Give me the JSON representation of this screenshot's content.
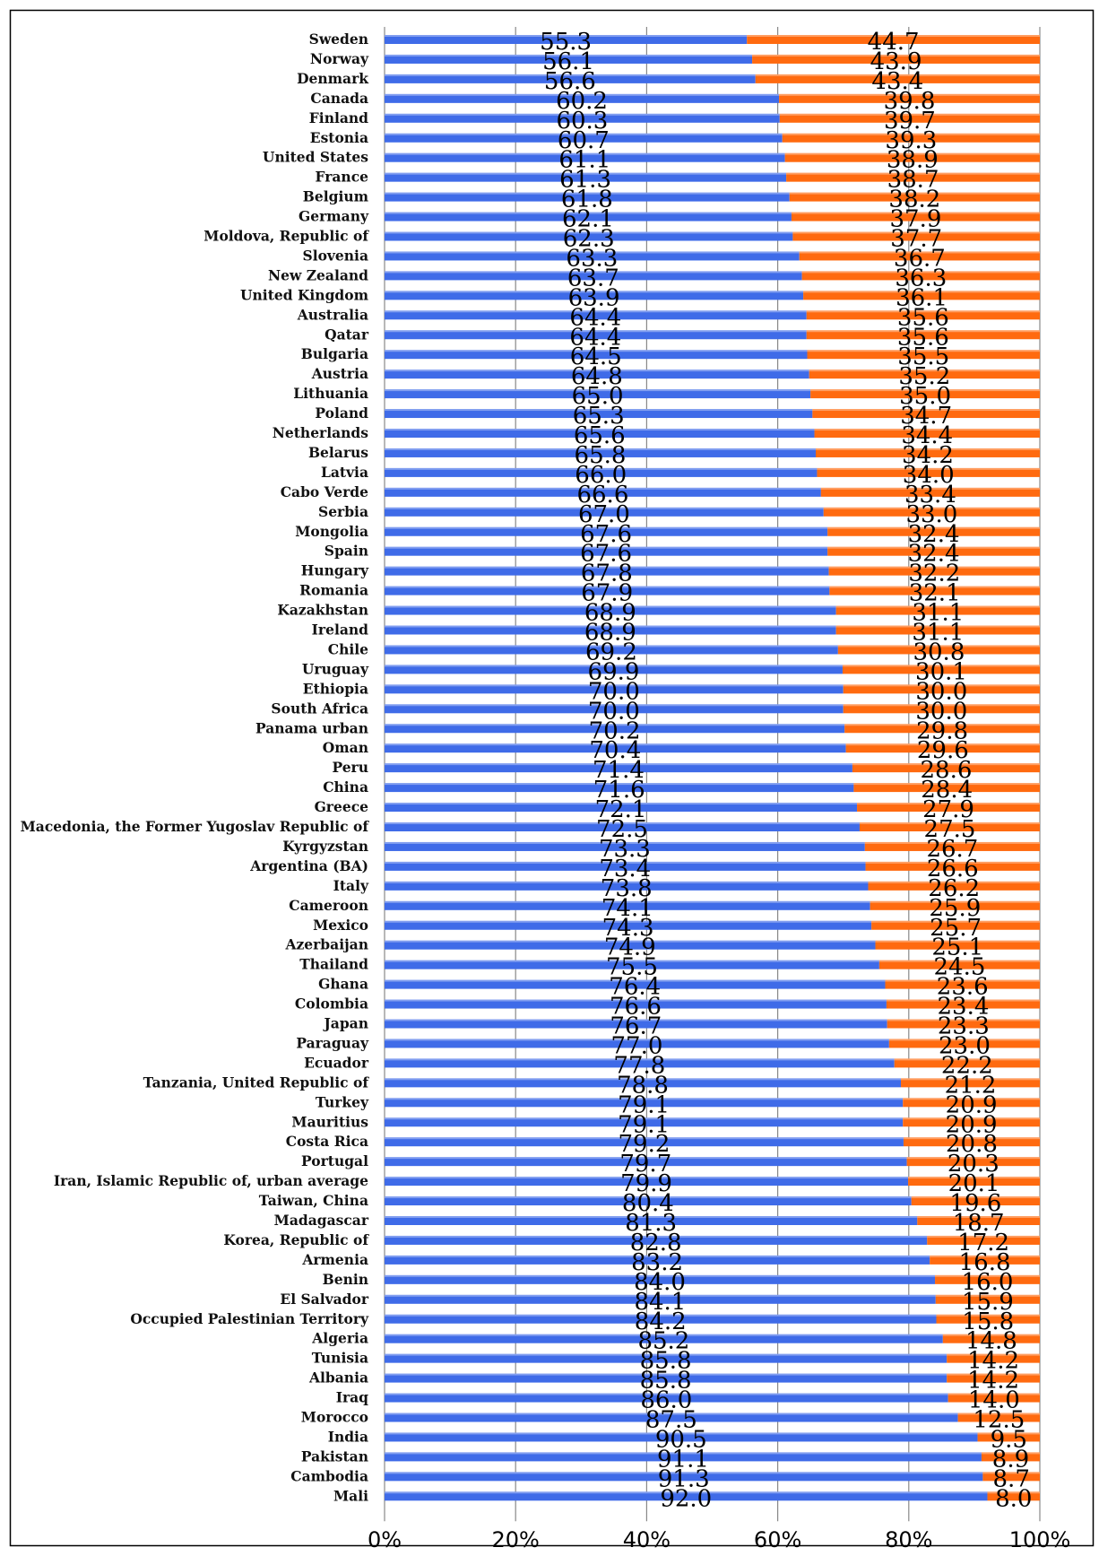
{
  "chart_data": {
    "type": "bar",
    "orientation": "horizontal",
    "stacked": "percent",
    "title": "",
    "xlabel": "",
    "ylabel": "",
    "xlim": [
      0,
      100
    ],
    "x_ticks": [
      "0%",
      "20%",
      "40%",
      "60%",
      "80%",
      "100%"
    ],
    "grid": true,
    "categories": [
      "Sweden",
      "Norway",
      "Denmark",
      "Canada",
      "Finland",
      "Estonia",
      "United States",
      "France",
      "Belgium",
      "Germany",
      "Moldova, Republic of",
      "Slovenia",
      "New Zealand",
      "United Kingdom",
      "Australia",
      "Qatar",
      "Bulgaria",
      "Austria",
      "Lithuania",
      "Poland",
      "Netherlands",
      "Belarus",
      "Latvia",
      "Cabo Verde",
      "Serbia",
      "Mongolia",
      "Spain",
      "Hungary",
      "Romania",
      "Kazakhstan",
      "Ireland",
      "Chile",
      "Uruguay",
      "Ethiopia",
      "South Africa",
      "Panama urban",
      "Oman",
      "Peru",
      "China",
      "Greece",
      "Macedonia, the Former Yugoslav Republic of",
      "Kyrgyzstan",
      "Argentina (BA)",
      "Italy",
      "Cameroon",
      "Mexico",
      "Azerbaijan",
      "Thailand",
      "Ghana",
      "Colombia",
      "Japan",
      "Paraguay",
      "Ecuador",
      "Tanzania, United Republic of",
      "Turkey",
      "Mauritius",
      "Costa Rica",
      "Portugal",
      "Iran, Islamic Republic of, urban average",
      "Taiwan, China",
      "Madagascar",
      "Korea, Republic of",
      "Armenia",
      "Benin",
      "El Salvador",
      "Occupied Palestinian Territory",
      "Algeria",
      "Tunisia",
      "Albania",
      "Iraq",
      "Morocco",
      "India",
      "Pakistan",
      "Cambodia",
      "Mali"
    ],
    "series": [
      {
        "values": [
          "55.3",
          "56.1",
          "56.6",
          "60.2",
          "60.3",
          "60.7",
          "61.1",
          "61.3",
          "61.8",
          "62.1",
          "62.3",
          "63.3",
          "63.7",
          "63.9",
          "64.4",
          "64.4",
          "64.5",
          "64.8",
          "65.0",
          "65.3",
          "65.6",
          "65.8",
          "66.0",
          "66.6",
          "67.0",
          "67.6",
          "67.6",
          "67.8",
          "67.9",
          "68.9",
          "68.9",
          "69.2",
          "69.9",
          "70.0",
          "70.0",
          "70.2",
          "70.4",
          "71.4",
          "71.6",
          "72.1",
          "72.5",
          "73.3",
          "73.4",
          "73.8",
          "74.1",
          "74.3",
          "74.9",
          "75.5",
          "76.4",
          "76.6",
          "76.7",
          "77.0",
          "77.8",
          "78.8",
          "79.1",
          "79.1",
          "79.2",
          "79.7",
          "79.9",
          "80.4",
          "81.3",
          "82.8",
          "83.2",
          "84.0",
          "84.1",
          "84.2",
          "85.2",
          "85.8",
          "85.8",
          "86.0",
          "87.5",
          "90.5",
          "91.1",
          "91.3",
          "92.0"
        ],
        "color": "#3F6BE8"
      },
      {
        "values": [
          "44.7",
          "43.9",
          "43.4",
          "39.8",
          "39.7",
          "39.3",
          "38.9",
          "38.7",
          "38.2",
          "37.9",
          "37.7",
          "36.7",
          "36.3",
          "36.1",
          "35.6",
          "35.6",
          "35.5",
          "35.2",
          "35.0",
          "34.7",
          "34.4",
          "34.2",
          "34.0",
          "33.4",
          "33.0",
          "32.4",
          "32.4",
          "32.2",
          "32.1",
          "31.1",
          "31.1",
          "30.8",
          "30.1",
          "30.0",
          "30.0",
          "29.8",
          "29.6",
          "28.6",
          "28.4",
          "27.9",
          "27.5",
          "26.7",
          "26.6",
          "26.2",
          "25.9",
          "25.7",
          "25.1",
          "24.5",
          "23.6",
          "23.4",
          "23.3",
          "23.0",
          "22.2",
          "21.2",
          "20.9",
          "20.9",
          "20.8",
          "20.3",
          "20.1",
          "19.6",
          "18.7",
          "17.2",
          "16.8",
          "16.0",
          "15.9",
          "15.8",
          "14.8",
          "14.2",
          "14.2",
          "14.0",
          "12.5",
          "9.5",
          "8.9",
          "8.7",
          "8.0"
        ],
        "color": "#FF6A0F"
      }
    ],
    "legend": "none"
  }
}
